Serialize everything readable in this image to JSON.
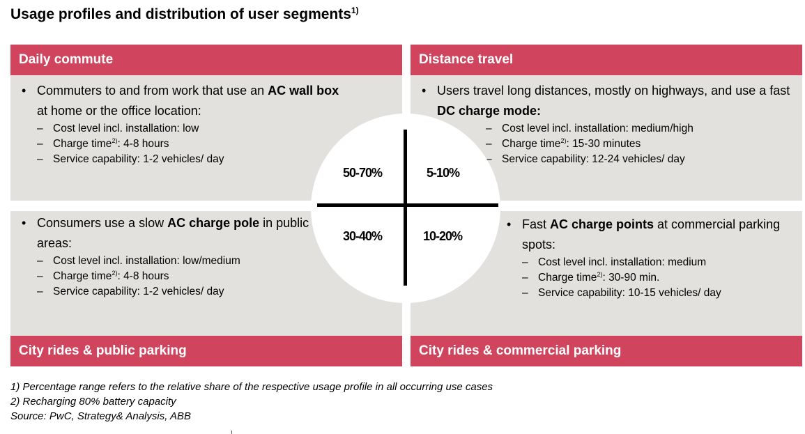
{
  "title": {
    "text": "Usage profiles and distribution of user segments",
    "footnote_ref": "1)"
  },
  "quadrants": {
    "top_left": {
      "header": "Daily commute",
      "bullet": {
        "pre": "Commuters to and from work that use an ",
        "bold": "AC wall box",
        "post": " at home or the office location:"
      },
      "details": [
        {
          "text": "Cost level incl. installation: low",
          "sup": "",
          "after": ""
        },
        {
          "text": "Charge time",
          "sup": "2)",
          "after": ": 4-8 hours"
        },
        {
          "text": "Service capability: 1-2 vehicles/ day",
          "sup": "",
          "after": ""
        }
      ],
      "share": "50-70%"
    },
    "top_right": {
      "header": "Distance travel",
      "bullet": {
        "pre": "Users travel long distances, mostly on highways, and use a fast ",
        "bold": "DC charge mode:",
        "post": ""
      },
      "details": [
        {
          "text": "Cost level incl. installation: medium/high",
          "sup": "",
          "after": ""
        },
        {
          "text": "Charge time",
          "sup": "2)",
          "after": ": 15-30 minutes"
        },
        {
          "text": "Service capability: 12-24 vehicles/ day",
          "sup": "",
          "after": ""
        }
      ],
      "share": "5-10%"
    },
    "bottom_left": {
      "header": "City rides & public parking",
      "bullet": {
        "pre": "Consumers use a slow ",
        "bold": "AC charge pole",
        "post": " in public areas:"
      },
      "details": [
        {
          "text": "Cost level incl. installation: low/medium",
          "sup": "",
          "after": ""
        },
        {
          "text": "Charge time",
          "sup": "2)",
          "after": ": 4-8 hours"
        },
        {
          "text": "Service capability: 1-2 vehicles/ day",
          "sup": "",
          "after": ""
        }
      ],
      "share": "30-40%"
    },
    "bottom_right": {
      "header": "City rides & commercial parking",
      "bullet": {
        "pre": "Fast ",
        "bold": "AC charge points",
        "post": " at commercial parking spots:"
      },
      "details": [
        {
          "text": "Cost level incl. installation: medium",
          "sup": "",
          "after": ""
        },
        {
          "text": "Charge time",
          "sup": "2)",
          "after": ": 30-90 min."
        },
        {
          "text": "Service capability: 10-15 vehicles/ day",
          "sup": "",
          "after": ""
        }
      ],
      "share": "10-20%"
    }
  },
  "footnotes": [
    "1) Percentage range refers to the relative share of the respective usage profile in all occurring use cases",
    "2) Recharging 80% battery capacity",
    "Source: PwC, Strategy& Analysis, ABB"
  ],
  "colors": {
    "band": "#d0445e",
    "panel": "#e3e1dd",
    "divider": "#000000"
  }
}
